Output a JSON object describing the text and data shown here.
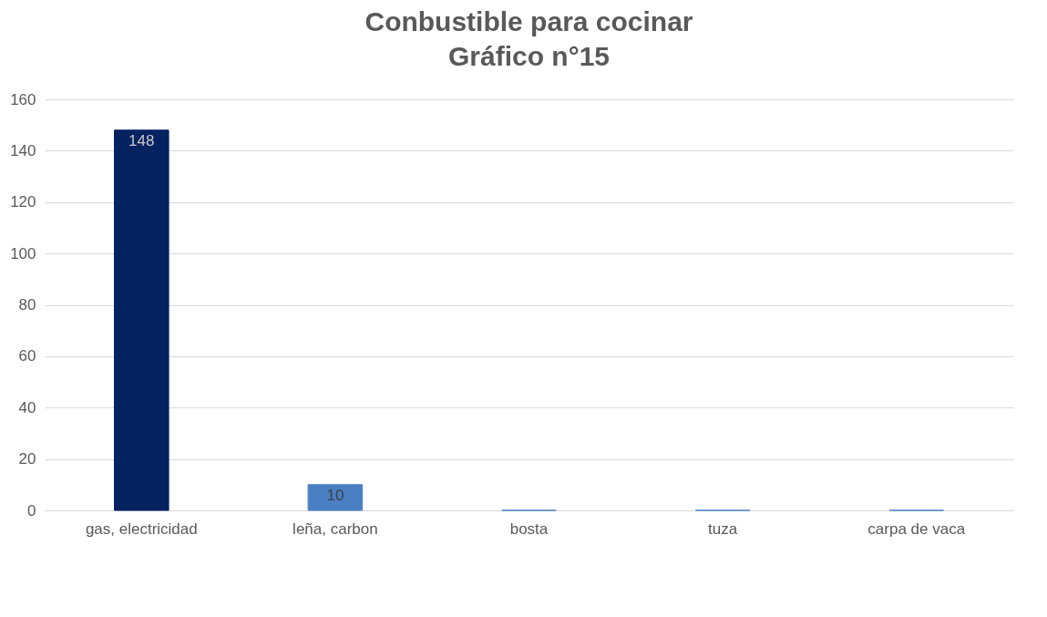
{
  "chart_data": {
    "type": "bar",
    "title": "Conbustible para cocinar",
    "subtitle": "Gráfico n°15",
    "categories": [
      "gas, electricidad",
      "leña, carbon",
      "bosta",
      "tuza",
      "carpa de vaca"
    ],
    "values": [
      148,
      10,
      0,
      0,
      0
    ],
    "colors": [
      "#042160",
      "#4a7fc4",
      "#4a7fc4",
      "#4a7fc4",
      "#4a7fc4"
    ],
    "value_labels": [
      "148",
      "10",
      null,
      null,
      null
    ],
    "ylim": [
      0,
      160
    ],
    "yticks": [
      0,
      20,
      40,
      60,
      80,
      100,
      120,
      140,
      160
    ],
    "grid": "y"
  }
}
